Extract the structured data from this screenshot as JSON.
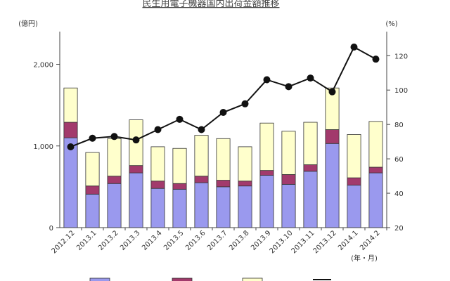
{
  "chart_data": {
    "type": "bar",
    "stacked": true,
    "secondary_line": true,
    "title": "民生用電子機器国内出荷金額推移",
    "y_left_unit": "(億円)",
    "y_right_unit": "(%)",
    "x_unit": "(年・月)",
    "categories": [
      "2012.12",
      "2013.1",
      "2013.2",
      "2013.3",
      "2013.4",
      "2013.5",
      "2013.6",
      "2013.7",
      "2013.8",
      "2013.9",
      "2013.10",
      "2013.11",
      "2013.12",
      "2014.1",
      "2014.2"
    ],
    "y_left": {
      "min": 0,
      "max": 2400,
      "ticks": [
        0,
        1000,
        2000
      ],
      "tick_labels": [
        "0",
        "1,000",
        "2,000"
      ]
    },
    "y_right": {
      "min": 20,
      "max": 134,
      "ticks": [
        20,
        40,
        60,
        80,
        100,
        120
      ],
      "tick_labels": [
        "20",
        "40",
        "60",
        "80",
        "100",
        "120"
      ]
    },
    "series": [
      {
        "color": "#9a99ee",
        "values": [
          1100,
          410,
          540,
          670,
          480,
          470,
          550,
          500,
          510,
          640,
          530,
          690,
          1030,
          520,
          670
        ]
      },
      {
        "color": "#a23a6c",
        "values": [
          190,
          100,
          90,
          90,
          90,
          70,
          80,
          80,
          60,
          60,
          120,
          80,
          170,
          90,
          70
        ]
      },
      {
        "color": "#ffffcc",
        "values": [
          420,
          410,
          460,
          560,
          420,
          430,
          500,
          510,
          420,
          580,
          530,
          520,
          510,
          530,
          560
        ]
      },
      {
        "color": "#111111",
        "type": "line",
        "axis": "right",
        "values": [
          67,
          72,
          73,
          71,
          77,
          83,
          77,
          87,
          92,
          106,
          102,
          107,
          99,
          125,
          118
        ]
      }
    ],
    "grid": false,
    "legend": "bottom"
  }
}
